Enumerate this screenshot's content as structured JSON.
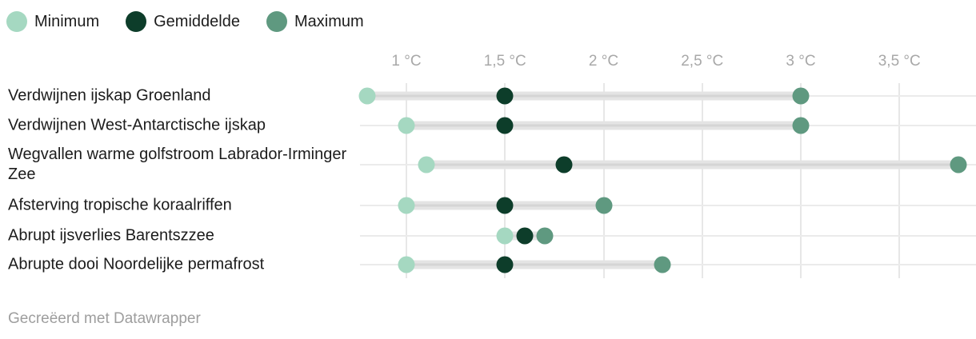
{
  "legend": {
    "items": [
      {
        "label": "Minimum",
        "color": "#a5d8c1"
      },
      {
        "label": "Gemiddelde",
        "color": "#0d3d2a"
      },
      {
        "label": "Maximum",
        "color": "#5f9980"
      }
    ]
  },
  "chart_data": {
    "type": "scatter",
    "subtype": "dot-range-plot",
    "unit": "°C",
    "categories": [
      "Verdwijnen ijskap Groenland",
      "Verdwijnen West-Antarctische ijskap",
      "Wegvallen warme golfstroom Labrador-Irminger Zee",
      "Afsterving tropische koraalriffen",
      "Abrupt ijsverlies Barentszzee",
      "Abrupte dooi Noordelijke permafrost"
    ],
    "series": [
      {
        "name": "Minimum",
        "color": "#a5d8c1",
        "values": [
          0.8,
          1.0,
          1.1,
          1.0,
          1.5,
          1.0
        ]
      },
      {
        "name": "Gemiddelde",
        "color": "#0d3d2a",
        "values": [
          1.5,
          1.5,
          1.8,
          1.5,
          1.6,
          1.5
        ]
      },
      {
        "name": "Maximum",
        "color": "#5f9980",
        "values": [
          3.0,
          3.0,
          3.8,
          2.0,
          1.7,
          2.3
        ]
      }
    ],
    "x_ticks": [
      {
        "value": 1.0,
        "label": "1 °C"
      },
      {
        "value": 1.5,
        "label": "1,5 °C"
      },
      {
        "value": 2.0,
        "label": "2 °C"
      },
      {
        "value": 2.5,
        "label": "2,5 °C"
      },
      {
        "value": 3.0,
        "label": "3 °C"
      },
      {
        "value": 3.5,
        "label": "3,5 °C"
      }
    ],
    "xlim": [
      0.77,
      3.89
    ],
    "grid": true,
    "legend_position": "top-left",
    "bar_color": "#e4e4e4",
    "title": "",
    "xlabel": "",
    "ylabel": ""
  },
  "footer": {
    "credit": "Gecreëerd met Datawrapper"
  }
}
